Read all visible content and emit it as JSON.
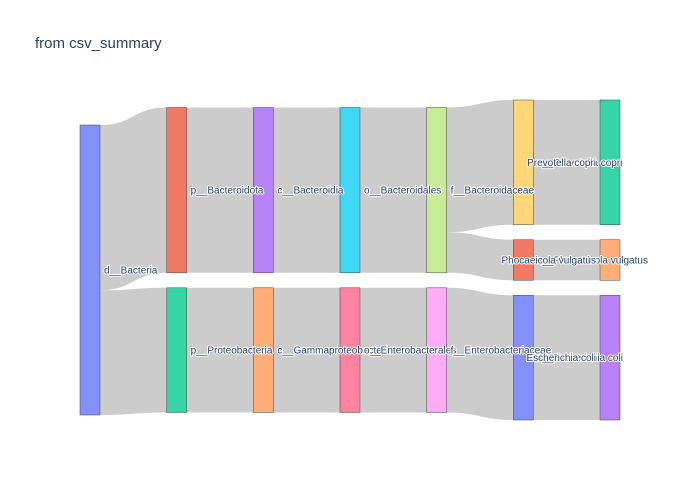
{
  "chart_title": "from csv_summary",
  "chart_data": {
    "type": "sankey",
    "title": "from csv_summary",
    "nodes": [
      {
        "id": 0,
        "label": "d__Bacteria",
        "color": "#8390fa",
        "column": 0
      },
      {
        "id": 1,
        "label": "p__Bacteroidota",
        "color": "#f27a62",
        "column": 1
      },
      {
        "id": 2,
        "label": "p__Proteobacteria",
        "color": "#36d5a6",
        "column": 1
      },
      {
        "id": 3,
        "label": "c__Bacteroidia",
        "color": "#b882f7",
        "column": 2
      },
      {
        "id": 4,
        "label": "c__Gammaproteobacteria",
        "color": "#ffad78",
        "column": 2
      },
      {
        "id": 5,
        "label": "o__Bacteroidales",
        "color": "#3fd7f3",
        "column": 3
      },
      {
        "id": 6,
        "label": "o__Enterobacterales",
        "color": "#fd83a2",
        "column": 3
      },
      {
        "id": 7,
        "label": "f__Bacteroidaceae",
        "color": "#c8eb95",
        "column": 4
      },
      {
        "id": 8,
        "label": "f__Enterobacteriaceae",
        "color": "#fdacf7",
        "column": 4
      },
      {
        "id": 9,
        "label": "s__Prevotella copri",
        "color": "#ffd779",
        "column": 5
      },
      {
        "id": 10,
        "label": "s__Phocaeicola vulgatus",
        "color": "#f27a62",
        "column": 5
      },
      {
        "id": 11,
        "label": "s__Escherichia coli",
        "color": "#8390fa",
        "column": 5
      },
      {
        "id": 12,
        "label": "Prevotella copri",
        "color": "#36d5a6",
        "column": 6
      },
      {
        "id": 13,
        "label": "Phocaeicola vulgatus",
        "color": "#ffad78",
        "column": 6
      },
      {
        "id": 14,
        "label": "Escherichia coli",
        "color": "#b882f7",
        "column": 6
      }
    ],
    "links": [
      {
        "source": 0,
        "target": 1,
        "value": 57
      },
      {
        "source": 0,
        "target": 2,
        "value": 43
      },
      {
        "source": 1,
        "target": 3,
        "value": 57
      },
      {
        "source": 2,
        "target": 4,
        "value": 43
      },
      {
        "source": 3,
        "target": 5,
        "value": 57
      },
      {
        "source": 4,
        "target": 6,
        "value": 43
      },
      {
        "source": 5,
        "target": 7,
        "value": 57
      },
      {
        "source": 6,
        "target": 8,
        "value": 43
      },
      {
        "source": 7,
        "target": 9,
        "value": 43
      },
      {
        "source": 7,
        "target": 10,
        "value": 14
      },
      {
        "source": 8,
        "target": 11,
        "value": 43
      },
      {
        "source": 9,
        "target": 12,
        "value": 43
      },
      {
        "source": 10,
        "target": 13,
        "value": 14
      },
      {
        "source": 11,
        "target": 14,
        "value": 43
      }
    ],
    "link_color": "#cccccc",
    "node_outline_color": "#444444"
  }
}
